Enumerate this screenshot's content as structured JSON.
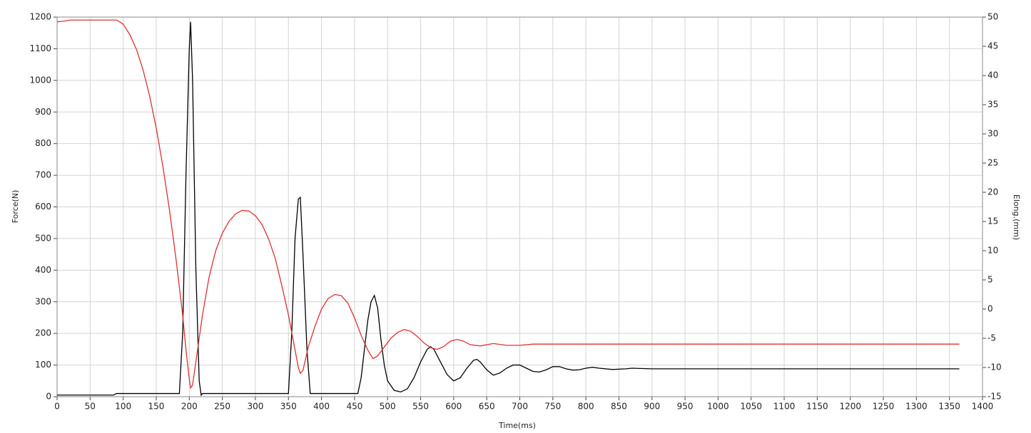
{
  "chart_data": {
    "type": "line",
    "x_label": "Time(ms)",
    "y_label": "Force(N)",
    "y2_label": "Elong.(mm)",
    "xlim": [
      0,
      1400
    ],
    "xticks": [
      0,
      50,
      100,
      150,
      200,
      250,
      300,
      350,
      400,
      450,
      500,
      550,
      600,
      650,
      700,
      750,
      800,
      850,
      900,
      950,
      1000,
      1050,
      1100,
      1150,
      1200,
      1250,
      1300,
      1350,
      1400
    ],
    "ylim": [
      0,
      1200
    ],
    "yticks": [
      0,
      100,
      200,
      300,
      400,
      500,
      600,
      700,
      800,
      900,
      1000,
      1100,
      1200
    ],
    "y2lim": [
      -15,
      50
    ],
    "y2ticks": [
      -15,
      -10,
      -5,
      0,
      5,
      10,
      15,
      20,
      25,
      30,
      35,
      40,
      45,
      50
    ],
    "grid": true,
    "series": [
      {
        "color": "#000000",
        "x": [
          0,
          20,
          50,
          85,
          90,
          100,
          150,
          185,
          190,
          195,
          200,
          202,
          205,
          210,
          215,
          218,
          220,
          300,
          350,
          355,
          360,
          365,
          368,
          372,
          378,
          383,
          390,
          455,
          460,
          465,
          470,
          475,
          480,
          485,
          490,
          495,
          500,
          510,
          520,
          530,
          540,
          550,
          560,
          565,
          570,
          580,
          590,
          600,
          610,
          620,
          630,
          635,
          640,
          650,
          660,
          670,
          680,
          690,
          700,
          710,
          720,
          730,
          740,
          750,
          760,
          770,
          780,
          790,
          800,
          810,
          820,
          840,
          860,
          870,
          900,
          1000,
          1100,
          1200,
          1300,
          1365
        ],
        "values": [
          5,
          5,
          5,
          5,
          10,
          10,
          10,
          10,
          200,
          700,
          1100,
          1185,
          1000,
          400,
          50,
          5,
          10,
          10,
          10,
          200,
          500,
          625,
          630,
          450,
          150,
          10,
          10,
          10,
          60,
          150,
          240,
          300,
          320,
          280,
          180,
          100,
          50,
          20,
          15,
          25,
          60,
          110,
          150,
          158,
          150,
          110,
          70,
          50,
          60,
          90,
          115,
          118,
          110,
          85,
          68,
          75,
          90,
          100,
          100,
          90,
          80,
          78,
          85,
          95,
          95,
          88,
          84,
          85,
          90,
          93,
          90,
          86,
          88,
          90,
          88,
          88,
          88,
          88,
          88,
          88
        ]
      },
      {
        "color": "#e03030",
        "axis": "y2",
        "x": [
          0,
          10,
          20,
          90,
          100,
          110,
          120,
          130,
          140,
          150,
          160,
          170,
          180,
          190,
          195,
          200,
          202,
          205,
          210,
          220,
          230,
          240,
          250,
          260,
          270,
          280,
          290,
          300,
          310,
          320,
          330,
          340,
          350,
          360,
          365,
          368,
          372,
          380,
          390,
          400,
          410,
          420,
          430,
          440,
          450,
          460,
          470,
          478,
          485,
          495,
          505,
          515,
          525,
          535,
          545,
          555,
          565,
          575,
          585,
          595,
          605,
          615,
          625,
          640,
          660,
          680,
          700,
          720,
          740,
          800,
          900,
          1000,
          1100,
          1200,
          1300,
          1365
        ],
        "values": [
          49.2,
          49.3,
          49.5,
          49.5,
          48.8,
          47,
          44.5,
          41,
          36.5,
          31,
          24.5,
          17,
          8.5,
          -1,
          -7,
          -12,
          -13.5,
          -13,
          -9,
          -1,
          5.5,
          10,
          13,
          15,
          16.3,
          16.9,
          16.8,
          16,
          14.5,
          12,
          8.7,
          4,
          -1,
          -7,
          -10,
          -11,
          -10.5,
          -6.5,
          -3,
          0,
          1.8,
          2.5,
          2.3,
          1,
          -1.5,
          -4.5,
          -7,
          -8.5,
          -8,
          -6.5,
          -5,
          -4,
          -3.5,
          -3.8,
          -4.7,
          -5.8,
          -6.6,
          -6.9,
          -6.4,
          -5.5,
          -5.2,
          -5.5,
          -6.1,
          -6.3,
          -5.9,
          -6.2,
          -6.2,
          -6,
          -6,
          -6,
          -6,
          -6,
          -6,
          -6,
          -6,
          -6
        ]
      }
    ]
  }
}
